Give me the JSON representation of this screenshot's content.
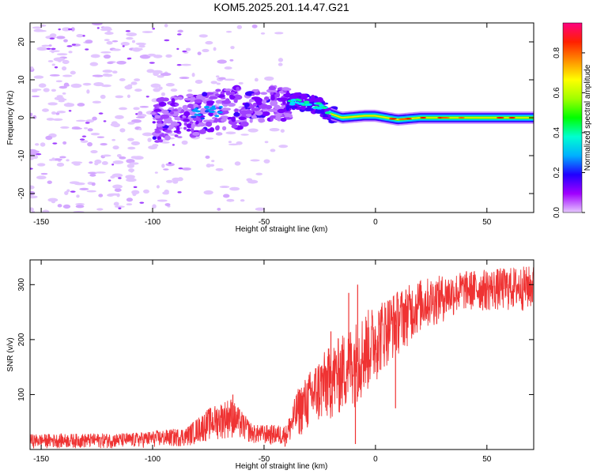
{
  "title": "KOM5.2025.201.14.47.G21",
  "chart_data": [
    {
      "type": "heatmap",
      "xlabel": "Height of straight line (km)",
      "ylabel": "Frequency (Hz)",
      "xlim": [
        -155,
        71
      ],
      "ylim": [
        -25,
        25
      ],
      "xticks": [
        -150,
        -100,
        -50,
        0,
        50
      ],
      "yticks": [
        -20,
        -10,
        0,
        10,
        20
      ],
      "colorbar": {
        "label": "Normalized spectral amplitude",
        "range": [
          0,
          0.95
        ],
        "ticks": [
          "0.0",
          "0.2",
          "0.4",
          "0.6",
          "0.8"
        ],
        "tick_values": [
          0,
          0.2,
          0.4,
          0.6,
          0.8
        ],
        "colors": [
          "#e6c8ff",
          "#a000ff",
          "#2000ff",
          "#00b0ff",
          "#00ffd0",
          "#00ff00",
          "#a0ff00",
          "#ffff00",
          "#ff9000",
          "#ff2000",
          "#ff0080"
        ]
      },
      "series": [
        {
          "ridge": [
            {
              "x": -100,
              "y": -1
            },
            {
              "x": -80,
              "y": 1
            },
            {
              "x": -70,
              "y": 2
            },
            {
              "x": -55,
              "y": 3
            },
            {
              "x": -40,
              "y": 4
            },
            {
              "x": -35,
              "y": 4.5
            },
            {
              "x": -25,
              "y": 3
            },
            {
              "x": -20,
              "y": 1
            },
            {
              "x": -15,
              "y": 0
            },
            {
              "x": -5,
              "y": 0.5
            },
            {
              "x": 0,
              "y": 0.5
            },
            {
              "x": 5,
              "y": 0
            },
            {
              "x": 10,
              "y": -0.5
            },
            {
              "x": 20,
              "y": 0
            },
            {
              "x": 40,
              "y": 0
            },
            {
              "x": 71,
              "y": 0
            }
          ]
        }
      ]
    },
    {
      "type": "line",
      "xlabel": "Height of straight line (km)",
      "ylabel": "SNR (v/v)",
      "xlim": [
        -155,
        71
      ],
      "ylim": [
        0,
        345
      ],
      "xticks": [
        -150,
        -100,
        -50,
        0,
        50
      ],
      "yticks": [
        100,
        200,
        300
      ],
      "color": "#ef3333",
      "envelope": [
        {
          "x": -155,
          "low": 2,
          "high": 28
        },
        {
          "x": -110,
          "low": 2,
          "high": 30
        },
        {
          "x": -85,
          "low": 5,
          "high": 40
        },
        {
          "x": -75,
          "low": 15,
          "high": 75
        },
        {
          "x": -65,
          "low": 20,
          "high": 95
        },
        {
          "x": -55,
          "low": 10,
          "high": 45
        },
        {
          "x": -40,
          "low": 5,
          "high": 45
        },
        {
          "x": -35,
          "low": 20,
          "high": 110
        },
        {
          "x": -25,
          "low": 40,
          "high": 170
        },
        {
          "x": -15,
          "low": 60,
          "high": 210
        },
        {
          "x": -5,
          "low": 90,
          "high": 250
        },
        {
          "x": 5,
          "low": 150,
          "high": 280
        },
        {
          "x": 20,
          "low": 210,
          "high": 310
        },
        {
          "x": 40,
          "low": 250,
          "high": 325
        },
        {
          "x": 71,
          "low": 250,
          "high": 335
        }
      ],
      "spikes": [
        {
          "x": -12,
          "y": 285
        },
        {
          "x": -8,
          "y": 300
        },
        {
          "x": -20,
          "y": 215
        },
        {
          "x": -9,
          "y": 10
        },
        {
          "x": 9,
          "y": 75
        },
        {
          "x": -64,
          "y": 100
        }
      ]
    }
  ]
}
